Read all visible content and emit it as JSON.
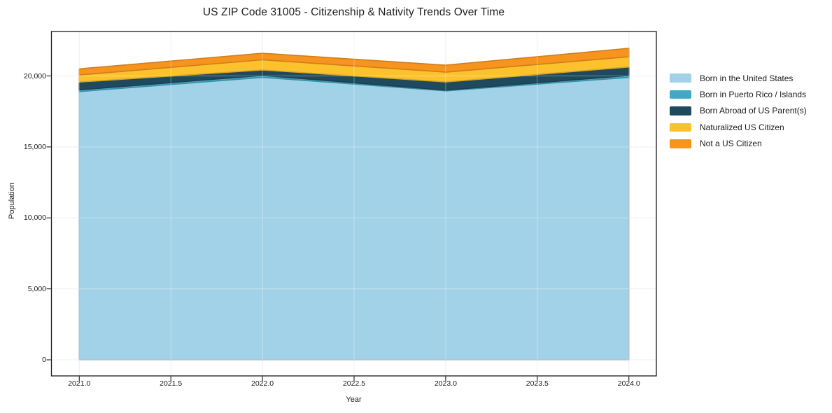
{
  "title": "US ZIP Code 31005 - Citizenship & Nativity Trends Over Time",
  "chart_data": {
    "type": "area",
    "stacked": true,
    "title": "US ZIP Code 31005 - Citizenship & Nativity Trends Over Time",
    "xlabel": "Year",
    "ylabel": "Population",
    "x": [
      2021,
      2022,
      2023,
      2024
    ],
    "series": [
      {
        "name": "Born in the United States",
        "color": "#A2D2E7",
        "values": [
          18900,
          19900,
          18950,
          19900
        ]
      },
      {
        "name": "Born in Puerto Rico / Islands",
        "color": "#41A9C6",
        "values": [
          120,
          140,
          50,
          140
        ]
      },
      {
        "name": "Born Abroad of US Parent(s)",
        "color": "#1F4A5E",
        "values": [
          550,
          380,
          580,
          590
        ]
      },
      {
        "name": "Naturalized US Citizen",
        "color": "#FCC22D",
        "values": [
          500,
          720,
          690,
          720
        ]
      },
      {
        "name": "Not a US Citizen",
        "color": "#F6941E",
        "values": [
          430,
          460,
          490,
          600
        ]
      }
    ],
    "totals": [
      20500,
      21600,
      20760,
      21950
    ],
    "x_tick_values": [
      2021.0,
      2021.5,
      2022.0,
      2022.5,
      2023.0,
      2023.5,
      2024.0
    ],
    "x_ticks": [
      "2021.0",
      "2021.5",
      "2022.0",
      "2022.5",
      "2023.0",
      "2023.5",
      "2024.0"
    ],
    "y_tick_values": [
      0,
      5000,
      10000,
      15000,
      20000
    ],
    "y_ticks": [
      "0",
      "5,000",
      "10,000",
      "15,000",
      "20,000"
    ],
    "xlim": [
      2020.848,
      2024.15
    ],
    "ylim": [
      -1134,
      23132
    ],
    "grid": true,
    "legend_position": "right",
    "colors": {
      "grid_below": "#E9E9E9",
      "grid_above": "rgba(255,255,255,0.35)",
      "spine": "#1a1a1a",
      "background": "#ffffff"
    }
  }
}
